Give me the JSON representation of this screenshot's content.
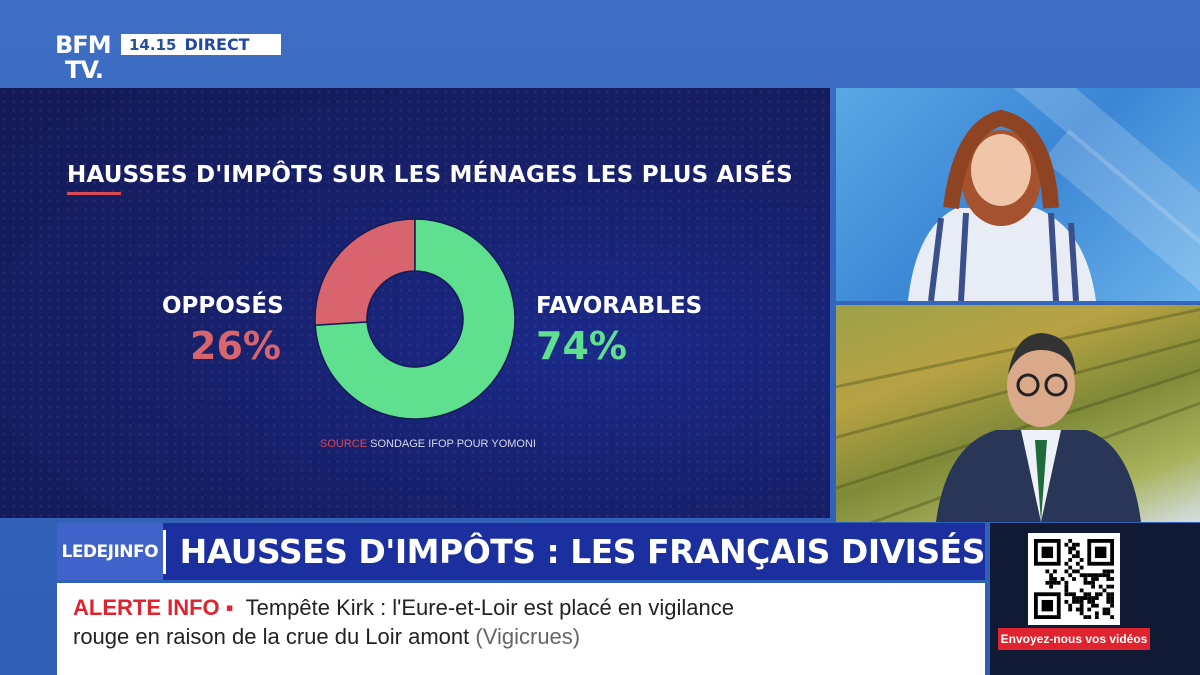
{
  "channel": {
    "logo_line1": "BFM",
    "logo_line2": "TV.",
    "time": "14.15",
    "live": "DIRECT"
  },
  "chart_data": {
    "type": "pie",
    "title": "HAUSSES D'IMPÔTS SUR LES MÉNAGES LES PLUS AISÉS",
    "slices": [
      {
        "label": "OPPOSÉS",
        "value": 26,
        "display": "26%",
        "color": "#d8646e"
      },
      {
        "label": "FAVORABLES",
        "value": 74,
        "display": "74%",
        "color": "#5fe08e"
      }
    ],
    "source_key": "SOURCE",
    "source_text": "SONDAGE IFOP POUR YOMONI"
  },
  "program": {
    "logo": "LEDEJINFO"
  },
  "headline": "HAUSSES D'IMPÔTS : LES FRANÇAIS DIVISÉS",
  "ticker": {
    "alert": "ALERTE INFO ▪",
    "line1": "Tempête Kirk : l'Eure-et-Loir est placé en vigilance",
    "line2": "rouge en raison de la crue du Loir amont",
    "source": "(Vigicrues)"
  },
  "qr": {
    "cta": "Envoyez-nous vos vidéos"
  },
  "colors": {
    "panel": "#17206a",
    "band": "#1c2f9e",
    "alert": "#e0242f"
  }
}
